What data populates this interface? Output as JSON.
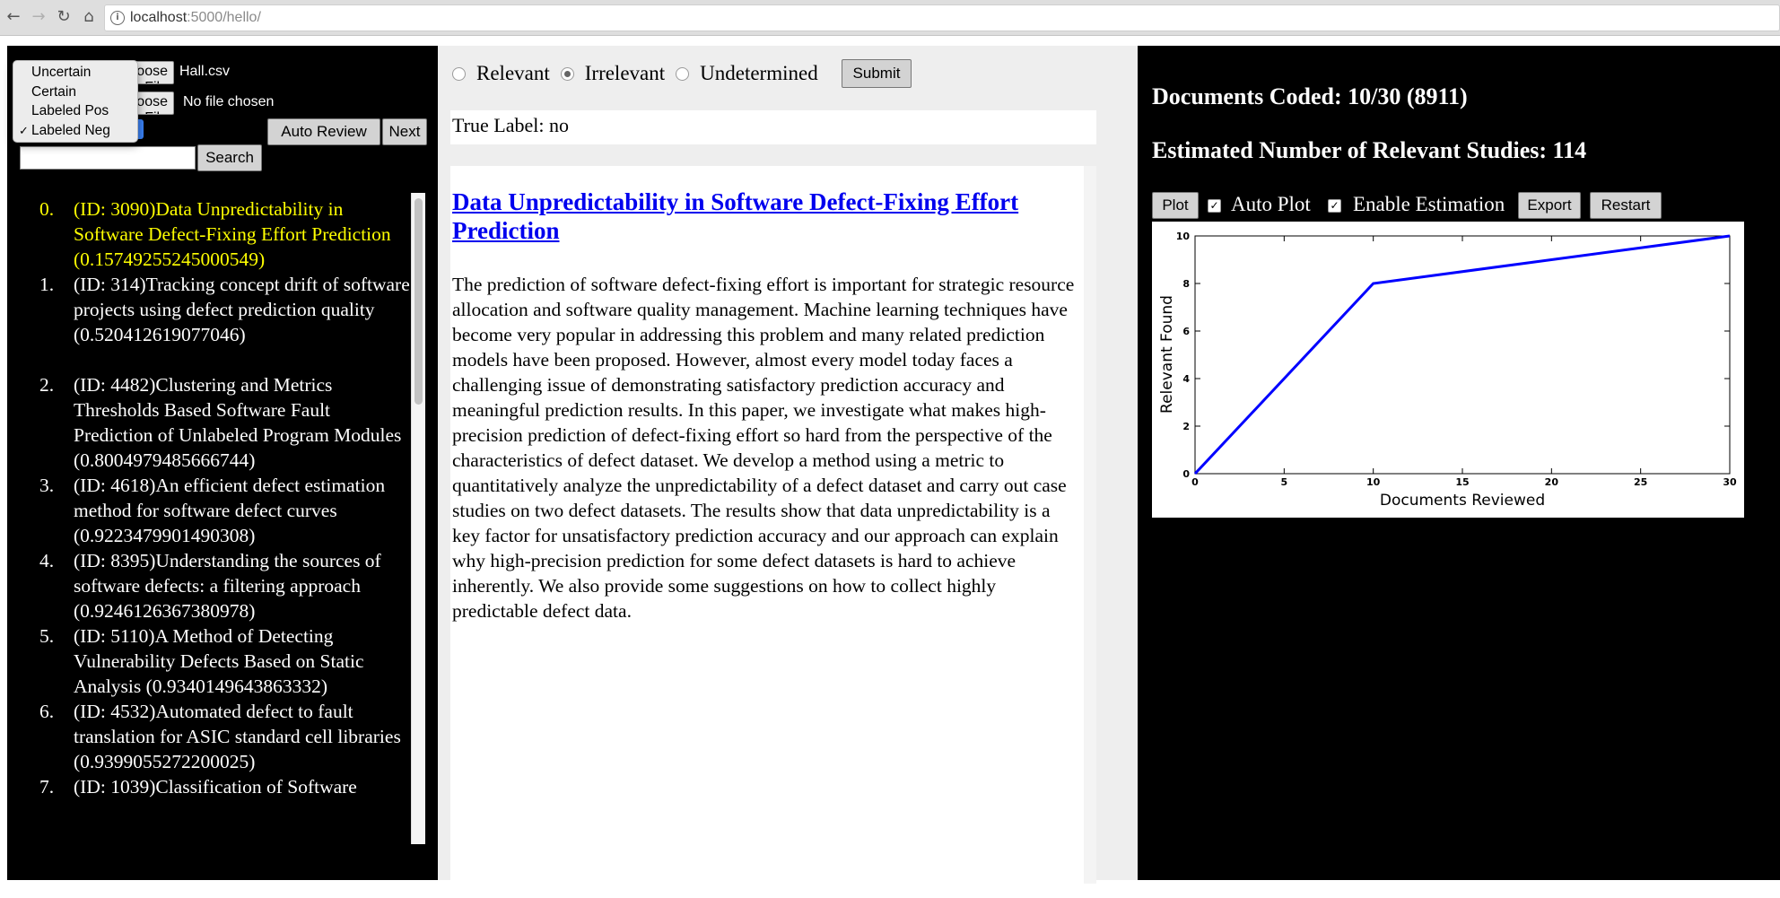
{
  "browser": {
    "url_host": "localhost",
    "url_path": ":5000/hello/"
  },
  "left": {
    "choose_file_label": "Choose File",
    "file1_name": "Hall.csv",
    "file2_name": "No file chosen",
    "dropdown_options": [
      "Uncertain",
      "Certain",
      "Labeled Pos",
      "Labeled Neg"
    ],
    "dropdown_selected": "Labeled Neg",
    "auto_review_label": "Auto Review",
    "next_label": "Next",
    "search_label": "Search",
    "search_value": "",
    "documents": [
      {
        "num": "0.",
        "text": "(ID: 3090)Data Unpredictability in Software Defect-Fixing Effort Prediction (0.15749255245000549)"
      },
      {
        "num": "1.",
        "text": "(ID: 314)Tracking concept drift of software projects using defect prediction quality (0.520412619077046)"
      },
      {
        "num": "2.",
        "text": "(ID: 4482)Clustering and Metrics Thresholds Based Software Fault Prediction of Unlabeled Program Modules (0.8004979485666744)"
      },
      {
        "num": "3.",
        "text": "(ID: 4618)An efficient defect estimation method for software defect curves (0.9223479901490308)"
      },
      {
        "num": "4.",
        "text": "(ID: 8395)Understanding the sources of software defects: a filtering approach (0.9246126367380978)"
      },
      {
        "num": "5.",
        "text": "(ID: 5110)A Method of Detecting Vulnerability Defects Based on Static Analysis (0.9340149643863332)"
      },
      {
        "num": "6.",
        "text": "(ID: 4532)Automated defect to fault translation for ASIC standard cell libraries (0.9399055272200025)"
      },
      {
        "num": "7.",
        "text": "(ID: 1039)Classification of Software"
      }
    ]
  },
  "middle": {
    "radio_options": [
      "Relevant",
      "Irrelevant",
      "Undetermined"
    ],
    "radio_selected": "Irrelevant",
    "submit_label": "Submit",
    "true_label": "True Label: no",
    "doc_title": "Data Unpredictability in Software Defect-Fixing Effort Prediction",
    "doc_abstract": "The prediction of software defect-fixing effort is important for strategic resource allocation and software quality management. Machine learning techniques have become very popular in addressing this problem and many related prediction models have been proposed. However, almost every model today faces a challenging issue of demonstrating satisfactory prediction accuracy and meaningful prediction results. In this paper, we investigate what makes high-precision prediction of defect-fixing effort so hard from the perspective of the characteristics of defect dataset. We develop a method using a metric to quantitatively analyze the unpredictability of a defect dataset and carry out case studies on two defect datasets. The results show that data unpredictability is a key factor for unsatisfactory prediction accuracy and our approach can explain why high-precision prediction for some defect datasets is hard to achieve inherently. We also provide some suggestions on how to collect highly predictable defect data."
  },
  "right": {
    "docs_coded": "Documents Coded: 10/30 (8911)",
    "estimated": "Estimated Number of Relevant Studies: 114",
    "plot_label": "Plot",
    "auto_plot_label": "Auto Plot",
    "auto_plot_checked": true,
    "enable_estimation_label": "Enable Estimation",
    "enable_estimation_checked": true,
    "export_label": "Export",
    "restart_label": "Restart"
  },
  "chart_data": {
    "type": "line",
    "xlabel": "Documents Reviewed",
    "ylabel": "Relevant Found",
    "xlim": [
      0,
      30
    ],
    "ylim": [
      0,
      10
    ],
    "xticks": [
      0,
      5,
      10,
      15,
      20,
      25,
      30
    ],
    "yticks": [
      0,
      2,
      4,
      6,
      8,
      10
    ],
    "series": [
      {
        "x": [
          0,
          10,
          30
        ],
        "y": [
          0,
          8,
          10
        ],
        "color": "#0000ff"
      }
    ]
  },
  "colors": {
    "active_doc": "#ffff00",
    "link": "#0000ee",
    "panel_dark": "#000000",
    "line": "#0000ff"
  }
}
